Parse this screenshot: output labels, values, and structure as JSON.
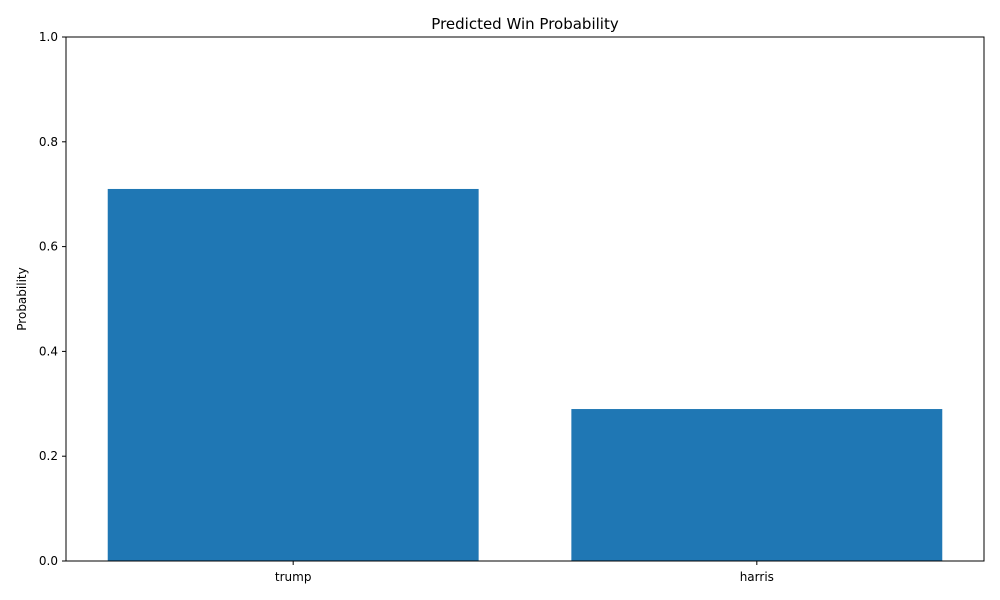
{
  "chart_data": {
    "type": "bar",
    "title": "Predicted Win Probability",
    "xlabel": "",
    "ylabel": "Probability",
    "categories": [
      "trump",
      "harris"
    ],
    "values": [
      0.71,
      0.29
    ],
    "ylim": [
      0,
      1
    ],
    "yticks": [
      0.0,
      0.2,
      0.4,
      0.6,
      0.8,
      1.0
    ],
    "ytick_labels": [
      "0.0",
      "0.2",
      "0.4",
      "0.6",
      "0.8",
      "1.0"
    ],
    "bar_color": "#1f77b4",
    "grid": false,
    "legend": "none"
  }
}
